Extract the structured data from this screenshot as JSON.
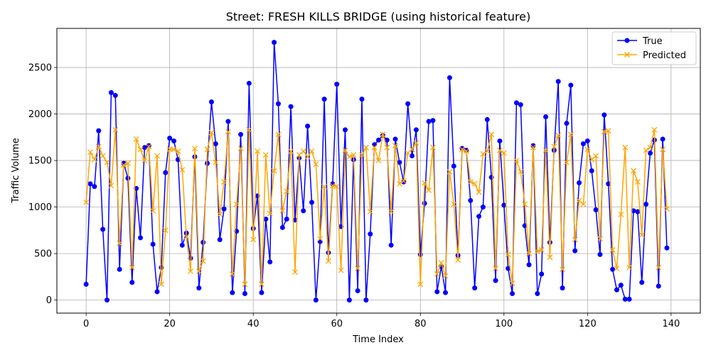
{
  "chart_data": {
    "type": "line",
    "title": "Street: FRESH KILLS BRIDGE (using historical feature)",
    "xlabel": "Time Index",
    "ylabel": "Traffic Volume",
    "xlim": [
      -7,
      147
    ],
    "ylim": [
      -140,
      2920
    ],
    "x_ticks": [
      0,
      20,
      40,
      60,
      80,
      100,
      120,
      140
    ],
    "y_ticks": [
      0,
      500,
      1000,
      1500,
      2000,
      2500
    ],
    "grid": true,
    "legend_position": "top-right",
    "series": [
      {
        "name": "True",
        "color": "#0000ff",
        "marker": "circle",
        "values": [
          170,
          1250,
          1220,
          1820,
          760,
          0,
          2230,
          2200,
          330,
          1470,
          1310,
          190,
          1200,
          670,
          1640,
          1660,
          600,
          90,
          350,
          1370,
          1740,
          1710,
          1510,
          590,
          720,
          450,
          1540,
          130,
          620,
          1470,
          2130,
          1680,
          650,
          980,
          1920,
          80,
          740,
          1780,
          70,
          2330,
          770,
          1120,
          80,
          870,
          410,
          2770,
          2110,
          780,
          870,
          2080,
          860,
          1530,
          960,
          1870,
          1050,
          0,
          630,
          2160,
          510,
          1250,
          2320,
          790,
          1830,
          0,
          1510,
          100,
          2160,
          0,
          710,
          1670,
          1720,
          1770,
          1720,
          590,
          1730,
          1480,
          1270,
          2110,
          1550,
          1830,
          490,
          1040,
          1920,
          1930,
          90,
          360,
          80,
          2390,
          1440,
          480,
          1630,
          1610,
          1070,
          130,
          900,
          1000,
          1940,
          1320,
          210,
          1710,
          1020,
          340,
          70,
          2120,
          2100,
          800,
          380,
          1660,
          70,
          280,
          1970,
          620,
          1610,
          2350,
          130,
          1900,
          2310,
          530,
          1260,
          1680,
          1710,
          1390,
          970,
          490,
          1990,
          1250,
          330,
          110,
          160,
          10,
          10,
          960,
          950,
          190,
          1030,
          1580,
          1720,
          150,
          1730,
          560
        ]
      },
      {
        "name": "Predicted",
        "color": "#ffa500",
        "marker": "x",
        "values": [
          1050,
          1590,
          1510,
          1650,
          1550,
          1480,
          1230,
          1830,
          610,
          1450,
          1470,
          350,
          1730,
          1620,
          1500,
          1650,
          960,
          1550,
          170,
          750,
          1620,
          1620,
          1600,
          1400,
          680,
          310,
          1630,
          310,
          420,
          1620,
          1800,
          1480,
          920,
          1270,
          1810,
          280,
          1030,
          1630,
          170,
          1830,
          650,
          1600,
          170,
          1560,
          930,
          1390,
          1780,
          960,
          1170,
          1600,
          300,
          1560,
          1600,
          1540,
          1600,
          1460,
          660,
          1220,
          420,
          1230,
          1220,
          320,
          1610,
          1540,
          1560,
          340,
          1560,
          1640,
          950,
          1640,
          1500,
          1780,
          1640,
          950,
          1660,
          1250,
          1280,
          1580,
          1620,
          1690,
          170,
          1260,
          1180,
          1640,
          280,
          400,
          260,
          1380,
          1030,
          430,
          1620,
          1600,
          1270,
          1250,
          1160,
          1570,
          1600,
          1780,
          340,
          1610,
          1580,
          490,
          180,
          1500,
          1380,
          1030,
          500,
          1640,
          520,
          540,
          1610,
          460,
          1650,
          1770,
          330,
          1480,
          1780,
          650,
          1070,
          1030,
          1620,
          1510,
          1550,
          660,
          1810,
          1820,
          540,
          340,
          920,
          1640,
          350,
          1390,
          1270,
          700,
          1610,
          1640,
          1830,
          350,
          1620,
          980
        ]
      }
    ]
  }
}
